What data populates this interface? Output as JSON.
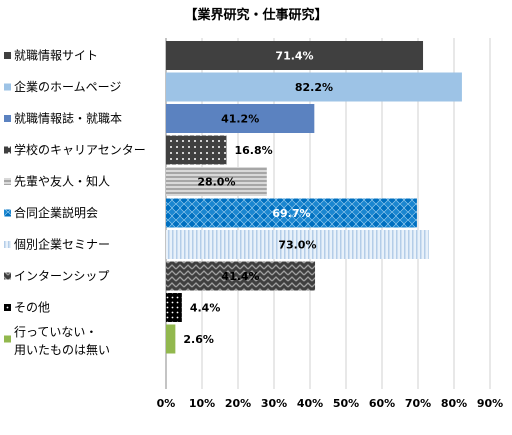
{
  "chart_data": {
    "type": "bar",
    "orientation": "horizontal",
    "title": "【業界研究・仕事研究】",
    "categories": [
      "就職情報サイト",
      "企業のホームページ",
      "就職情報誌・就職本",
      "学校のキャリアセンター",
      "先輩や友人・知人",
      "合同企業説明会",
      "個別企業セミナー",
      "インターンシップ",
      "その他",
      "行っていない・\n用いたものは無い"
    ],
    "values": [
      71.4,
      82.2,
      41.2,
      16.8,
      28.0,
      69.7,
      73.0,
      41.4,
      4.4,
      2.6
    ],
    "value_labels": [
      "71.4%",
      "82.2%",
      "41.2%",
      "16.8%",
      "28.0%",
      "69.7%",
      "73.0%",
      "41.4%",
      "4.4%",
      "2.6%"
    ],
    "xlim": [
      0,
      90
    ],
    "xticks": [
      "0%",
      "10%",
      "20%",
      "30%",
      "40%",
      "50%",
      "60%",
      "70%",
      "80%",
      "90%"
    ],
    "grid": true,
    "colors": [
      "#404040",
      "#9DC3E6",
      "#5B82C0",
      "#404040",
      "#BFBFBF",
      "#0070C0",
      "#DDEBF7",
      "#595959",
      "#000000",
      "#92B84E"
    ],
    "fills": [
      "solid",
      "solid",
      "solid",
      "dots",
      "hstripes",
      "checker",
      "vstripes",
      "zigzag",
      "dots",
      "solid"
    ],
    "label_colors": [
      "#ffffff",
      "#000000",
      "#000000",
      "#000000",
      "#000000",
      "#ffffff",
      "#000000",
      "#000000",
      "#000000",
      "#000000"
    ]
  }
}
